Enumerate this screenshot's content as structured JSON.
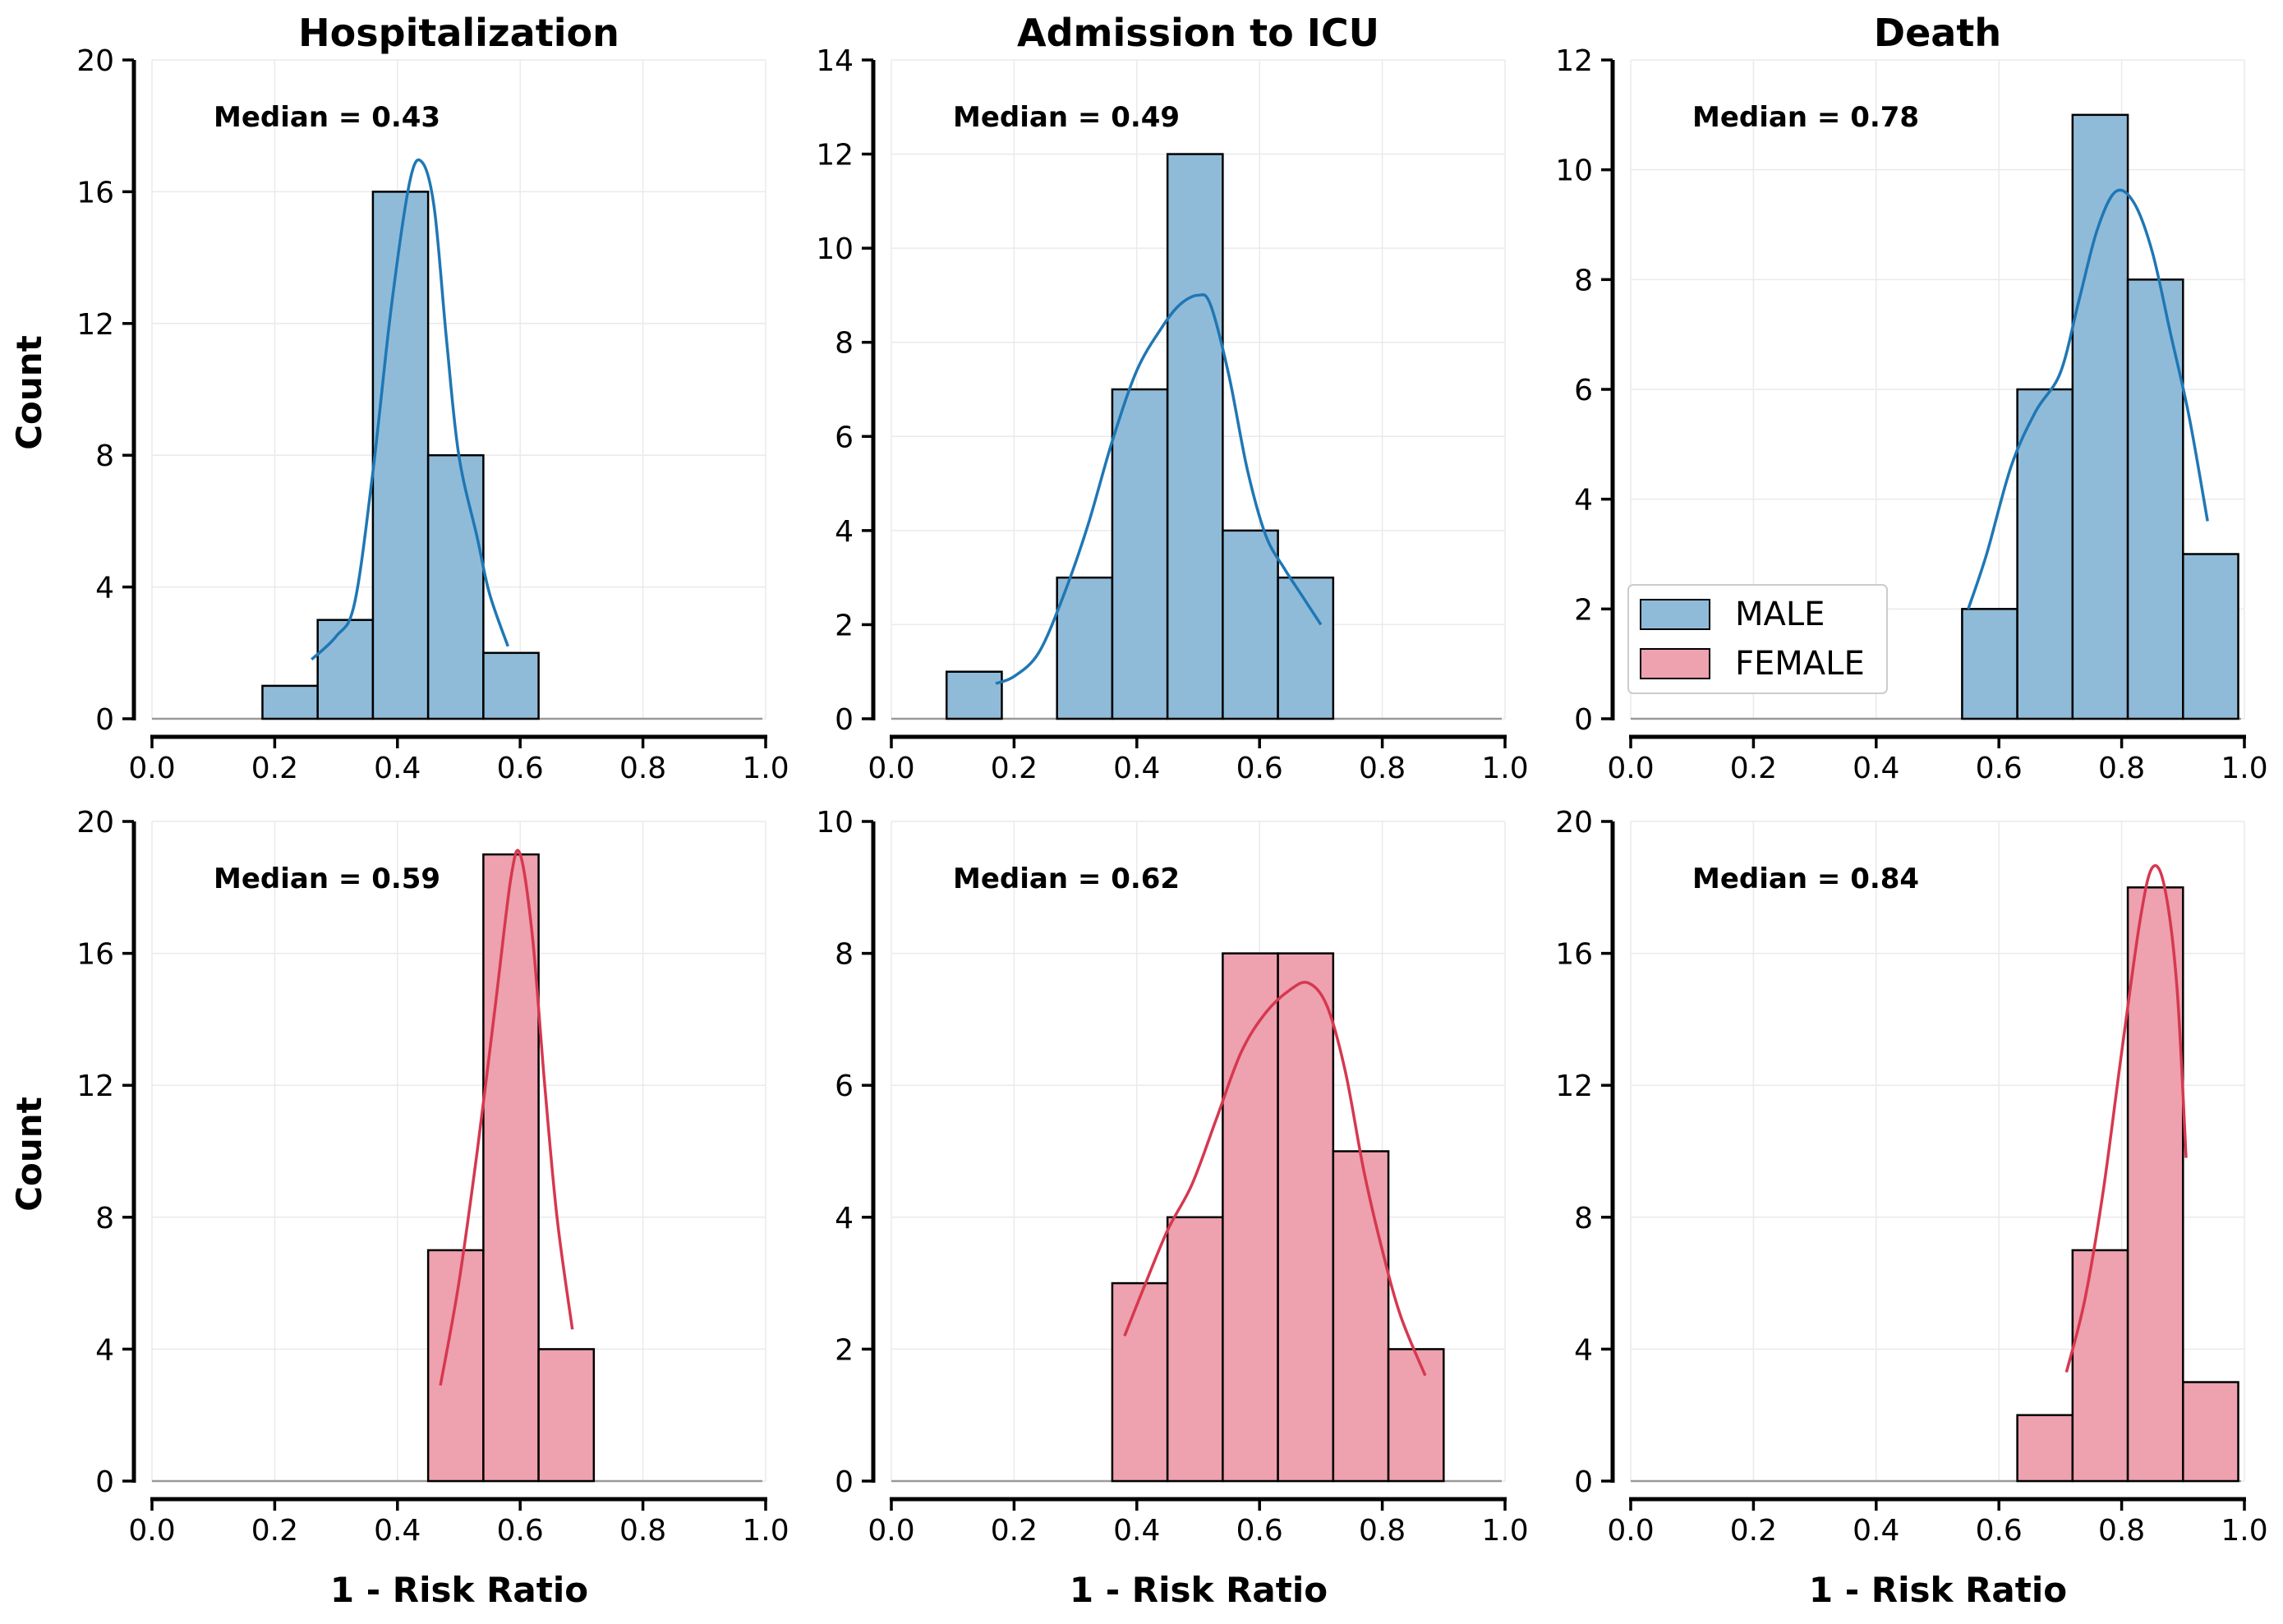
{
  "colors": {
    "male_fill": "#8fbbd9",
    "male_line": "#1f77b4",
    "female_fill": "#eea1ae",
    "female_line": "#d6384f",
    "bar_edge": "#000000",
    "grid": "#eaeaea",
    "baseline": "#999999"
  },
  "legend": {
    "items": [
      {
        "label": "MALE",
        "color": "#8fbbd9"
      },
      {
        "label": "FEMALE",
        "color": "#eea1ae"
      }
    ],
    "placement": "lower-left of Death (male) panel"
  },
  "labels": {
    "ylabel": "Count",
    "xlabel": "1 - Risk Ratio"
  },
  "chart_data": [
    {
      "type": "bar",
      "row": 0,
      "col": 0,
      "sex": "male",
      "title": "Hospitalization",
      "annotation": "Median = 0.43",
      "xlim": [
        0.0,
        1.0
      ],
      "ylim": [
        0,
        20
      ],
      "xticks": [
        "0.0",
        "0.2",
        "0.4",
        "0.6",
        "0.8",
        "1.0"
      ],
      "yticks": [
        "0",
        "4",
        "8",
        "12",
        "16",
        "20"
      ],
      "bins": [
        {
          "x0": 0.18,
          "x1": 0.27,
          "count": 1
        },
        {
          "x0": 0.27,
          "x1": 0.36,
          "count": 3
        },
        {
          "x0": 0.36,
          "x1": 0.45,
          "count": 16
        },
        {
          "x0": 0.45,
          "x1": 0.54,
          "count": 8
        },
        {
          "x0": 0.54,
          "x1": 0.63,
          "count": 2
        }
      ],
      "kde": [
        [
          0.26,
          1.8
        ],
        [
          0.3,
          2.5
        ],
        [
          0.33,
          3.5
        ],
        [
          0.36,
          7.5
        ],
        [
          0.39,
          12.5
        ],
        [
          0.42,
          16.3
        ],
        [
          0.44,
          16.9
        ],
        [
          0.46,
          15.5
        ],
        [
          0.48,
          11.5
        ],
        [
          0.5,
          8.0
        ],
        [
          0.53,
          5.5
        ],
        [
          0.55,
          3.8
        ],
        [
          0.58,
          2.2
        ]
      ],
      "grid": true
    },
    {
      "type": "bar",
      "row": 0,
      "col": 1,
      "sex": "male",
      "title": "Admission to ICU",
      "annotation": "Median = 0.49",
      "xlim": [
        0.0,
        1.0
      ],
      "ylim": [
        0,
        14
      ],
      "xticks": [
        "0.0",
        "0.2",
        "0.4",
        "0.6",
        "0.8",
        "1.0"
      ],
      "yticks": [
        "0",
        "2",
        "4",
        "6",
        "8",
        "10",
        "12",
        "14"
      ],
      "bins": [
        {
          "x0": 0.09,
          "x1": 0.18,
          "count": 1
        },
        {
          "x0": 0.27,
          "x1": 0.36,
          "count": 3
        },
        {
          "x0": 0.36,
          "x1": 0.45,
          "count": 7
        },
        {
          "x0": 0.45,
          "x1": 0.54,
          "count": 12
        },
        {
          "x0": 0.54,
          "x1": 0.63,
          "count": 4
        },
        {
          "x0": 0.63,
          "x1": 0.72,
          "count": 3
        }
      ],
      "kde": [
        [
          0.17,
          0.75
        ],
        [
          0.2,
          0.9
        ],
        [
          0.24,
          1.4
        ],
        [
          0.28,
          2.6
        ],
        [
          0.32,
          4.1
        ],
        [
          0.36,
          5.9
        ],
        [
          0.4,
          7.4
        ],
        [
          0.44,
          8.3
        ],
        [
          0.47,
          8.8
        ],
        [
          0.5,
          9.0
        ],
        [
          0.52,
          8.8
        ],
        [
          0.55,
          7.3
        ],
        [
          0.58,
          5.3
        ],
        [
          0.61,
          3.9
        ],
        [
          0.64,
          3.2
        ],
        [
          0.67,
          2.6
        ],
        [
          0.7,
          2.0
        ]
      ],
      "grid": true
    },
    {
      "type": "bar",
      "row": 0,
      "col": 2,
      "sex": "male",
      "title": "Death",
      "annotation": "Median = 0.78",
      "xlim": [
        0.0,
        1.0
      ],
      "ylim": [
        0,
        12
      ],
      "xticks": [
        "0.0",
        "0.2",
        "0.4",
        "0.6",
        "0.8",
        "1.0"
      ],
      "yticks": [
        "0",
        "2",
        "4",
        "6",
        "8",
        "10",
        "12"
      ],
      "bins": [
        {
          "x0": 0.54,
          "x1": 0.63,
          "count": 2
        },
        {
          "x0": 0.63,
          "x1": 0.72,
          "count": 6
        },
        {
          "x0": 0.72,
          "x1": 0.81,
          "count": 11
        },
        {
          "x0": 0.81,
          "x1": 0.9,
          "count": 8
        },
        {
          "x0": 0.9,
          "x1": 0.99,
          "count": 3
        }
      ],
      "kde": [
        [
          0.55,
          2.0
        ],
        [
          0.58,
          3.0
        ],
        [
          0.62,
          4.6
        ],
        [
          0.66,
          5.6
        ],
        [
          0.7,
          6.3
        ],
        [
          0.73,
          7.6
        ],
        [
          0.76,
          8.9
        ],
        [
          0.79,
          9.6
        ],
        [
          0.82,
          9.4
        ],
        [
          0.85,
          8.5
        ],
        [
          0.88,
          7.0
        ],
        [
          0.91,
          5.5
        ],
        [
          0.94,
          3.6
        ]
      ],
      "grid": true
    },
    {
      "type": "bar",
      "row": 1,
      "col": 0,
      "sex": "female",
      "title": "",
      "annotation": "Median = 0.59",
      "xlim": [
        0.0,
        1.0
      ],
      "ylim": [
        0,
        20
      ],
      "xticks": [
        "0.0",
        "0.2",
        "0.4",
        "0.6",
        "0.8",
        "1.0"
      ],
      "yticks": [
        "0",
        "4",
        "8",
        "12",
        "16",
        "20"
      ],
      "bins": [
        {
          "x0": 0.45,
          "x1": 0.54,
          "count": 7
        },
        {
          "x0": 0.54,
          "x1": 0.63,
          "count": 19
        },
        {
          "x0": 0.63,
          "x1": 0.72,
          "count": 4
        }
      ],
      "kde": [
        [
          0.47,
          2.9
        ],
        [
          0.5,
          6.0
        ],
        [
          0.53,
          10.0
        ],
        [
          0.56,
          14.5
        ],
        [
          0.585,
          18.3
        ],
        [
          0.6,
          19.0
        ],
        [
          0.62,
          16.5
        ],
        [
          0.64,
          12.0
        ],
        [
          0.66,
          8.0
        ],
        [
          0.685,
          4.6
        ]
      ],
      "grid": true
    },
    {
      "type": "bar",
      "row": 1,
      "col": 1,
      "sex": "female",
      "title": "",
      "annotation": "Median = 0.62",
      "xlim": [
        0.0,
        1.0
      ],
      "ylim": [
        0,
        10
      ],
      "xticks": [
        "0.0",
        "0.2",
        "0.4",
        "0.6",
        "0.8",
        "1.0"
      ],
      "yticks": [
        "0",
        "2",
        "4",
        "6",
        "8",
        "10"
      ],
      "bins": [
        {
          "x0": 0.36,
          "x1": 0.45,
          "count": 3
        },
        {
          "x0": 0.45,
          "x1": 0.54,
          "count": 4
        },
        {
          "x0": 0.54,
          "x1": 0.63,
          "count": 8
        },
        {
          "x0": 0.63,
          "x1": 0.72,
          "count": 8
        },
        {
          "x0": 0.72,
          "x1": 0.81,
          "count": 5
        },
        {
          "x0": 0.81,
          "x1": 0.9,
          "count": 2
        }
      ],
      "kde": [
        [
          0.38,
          2.2
        ],
        [
          0.41,
          2.9
        ],
        [
          0.45,
          3.8
        ],
        [
          0.49,
          4.5
        ],
        [
          0.53,
          5.5
        ],
        [
          0.57,
          6.5
        ],
        [
          0.61,
          7.1
        ],
        [
          0.65,
          7.45
        ],
        [
          0.68,
          7.55
        ],
        [
          0.71,
          7.2
        ],
        [
          0.74,
          6.2
        ],
        [
          0.77,
          4.7
        ],
        [
          0.8,
          3.5
        ],
        [
          0.83,
          2.5
        ],
        [
          0.87,
          1.6
        ]
      ],
      "grid": true
    },
    {
      "type": "bar",
      "row": 1,
      "col": 2,
      "sex": "female",
      "title": "",
      "annotation": "Median = 0.84",
      "xlim": [
        0.0,
        1.0
      ],
      "ylim": [
        0,
        20
      ],
      "xticks": [
        "0.0",
        "0.2",
        "0.4",
        "0.6",
        "0.8",
        "1.0"
      ],
      "yticks": [
        "0",
        "4",
        "8",
        "12",
        "16",
        "20"
      ],
      "bins": [
        {
          "x0": 0.63,
          "x1": 0.72,
          "count": 2
        },
        {
          "x0": 0.72,
          "x1": 0.81,
          "count": 7
        },
        {
          "x0": 0.81,
          "x1": 0.9,
          "count": 18
        },
        {
          "x0": 0.9,
          "x1": 0.99,
          "count": 3
        }
      ],
      "kde": [
        [
          0.71,
          3.3
        ],
        [
          0.74,
          5.5
        ],
        [
          0.77,
          8.8
        ],
        [
          0.8,
          13.0
        ],
        [
          0.83,
          17.0
        ],
        [
          0.85,
          18.6
        ],
        [
          0.87,
          18.0
        ],
        [
          0.89,
          15.0
        ],
        [
          0.905,
          9.8
        ]
      ],
      "grid": true
    }
  ]
}
